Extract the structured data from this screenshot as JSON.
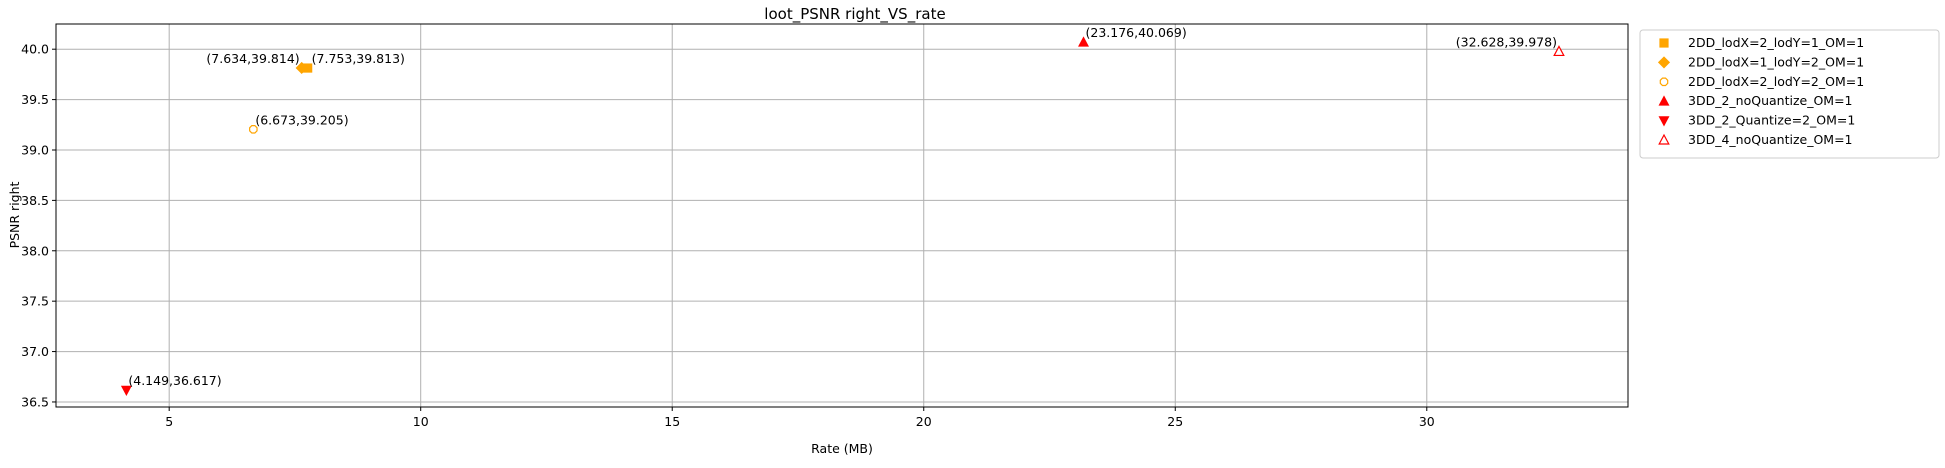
{
  "chart_data": {
    "type": "scatter",
    "title": "loot_PSNR right_VS_rate",
    "xlabel": "Rate (MB)",
    "ylabel": "PSNR right",
    "xlim": [
      2.75,
      34.0
    ],
    "ylim": [
      36.45,
      40.25
    ],
    "xticks": [
      5,
      10,
      15,
      20,
      25,
      30
    ],
    "yticks": [
      36.5,
      37.0,
      37.5,
      38.0,
      38.5,
      39.0,
      39.5,
      40.0
    ],
    "xtick_labels": [
      "5",
      "10",
      "15",
      "20",
      "25",
      "30"
    ],
    "ytick_labels": [
      "36.5",
      "37.0",
      "37.5",
      "38.0",
      "38.5",
      "39.0",
      "39.5",
      "40.0"
    ],
    "grid": true,
    "legend_position": "outside-top-right",
    "series": [
      {
        "name": "2DD_lodX=2_lodY=1_OM=1",
        "marker": "square",
        "color": "#FFA500",
        "filled": true,
        "points": [
          {
            "x": 7.753,
            "y": 39.813,
            "label": "(7.753,39.813)"
          }
        ]
      },
      {
        "name": "2DD_lodX=1_lodY=2_OM=1",
        "marker": "diamond",
        "color": "#FFA500",
        "filled": true,
        "points": [
          {
            "x": 7.634,
            "y": 39.814,
            "label": "(7.634,39.814)"
          }
        ]
      },
      {
        "name": "2DD_lodX=2_lodY=2_OM=1",
        "marker": "octagon",
        "color": "#FFA500",
        "filled": false,
        "points": [
          {
            "x": 6.673,
            "y": 39.205,
            "label": "(6.673,39.205)"
          }
        ]
      },
      {
        "name": "3DD_2_noQuantize_OM=1",
        "marker": "triangle-up",
        "color": "#FF0000",
        "filled": true,
        "points": [
          {
            "x": 23.176,
            "y": 40.069,
            "label": "(23.176,40.069)"
          }
        ]
      },
      {
        "name": "3DD_2_Quantize=2_OM=1",
        "marker": "triangle-down",
        "color": "#FF0000",
        "filled": true,
        "points": [
          {
            "x": 4.149,
            "y": 36.617,
            "label": "(4.149,36.617)"
          }
        ]
      },
      {
        "name": "3DD_4_noQuantize_OM=1",
        "marker": "triangle-up",
        "color": "#FF0000",
        "filled": false,
        "points": [
          {
            "x": 32.628,
            "y": 39.978,
            "label": "(32.628,39.978)"
          }
        ]
      }
    ]
  }
}
